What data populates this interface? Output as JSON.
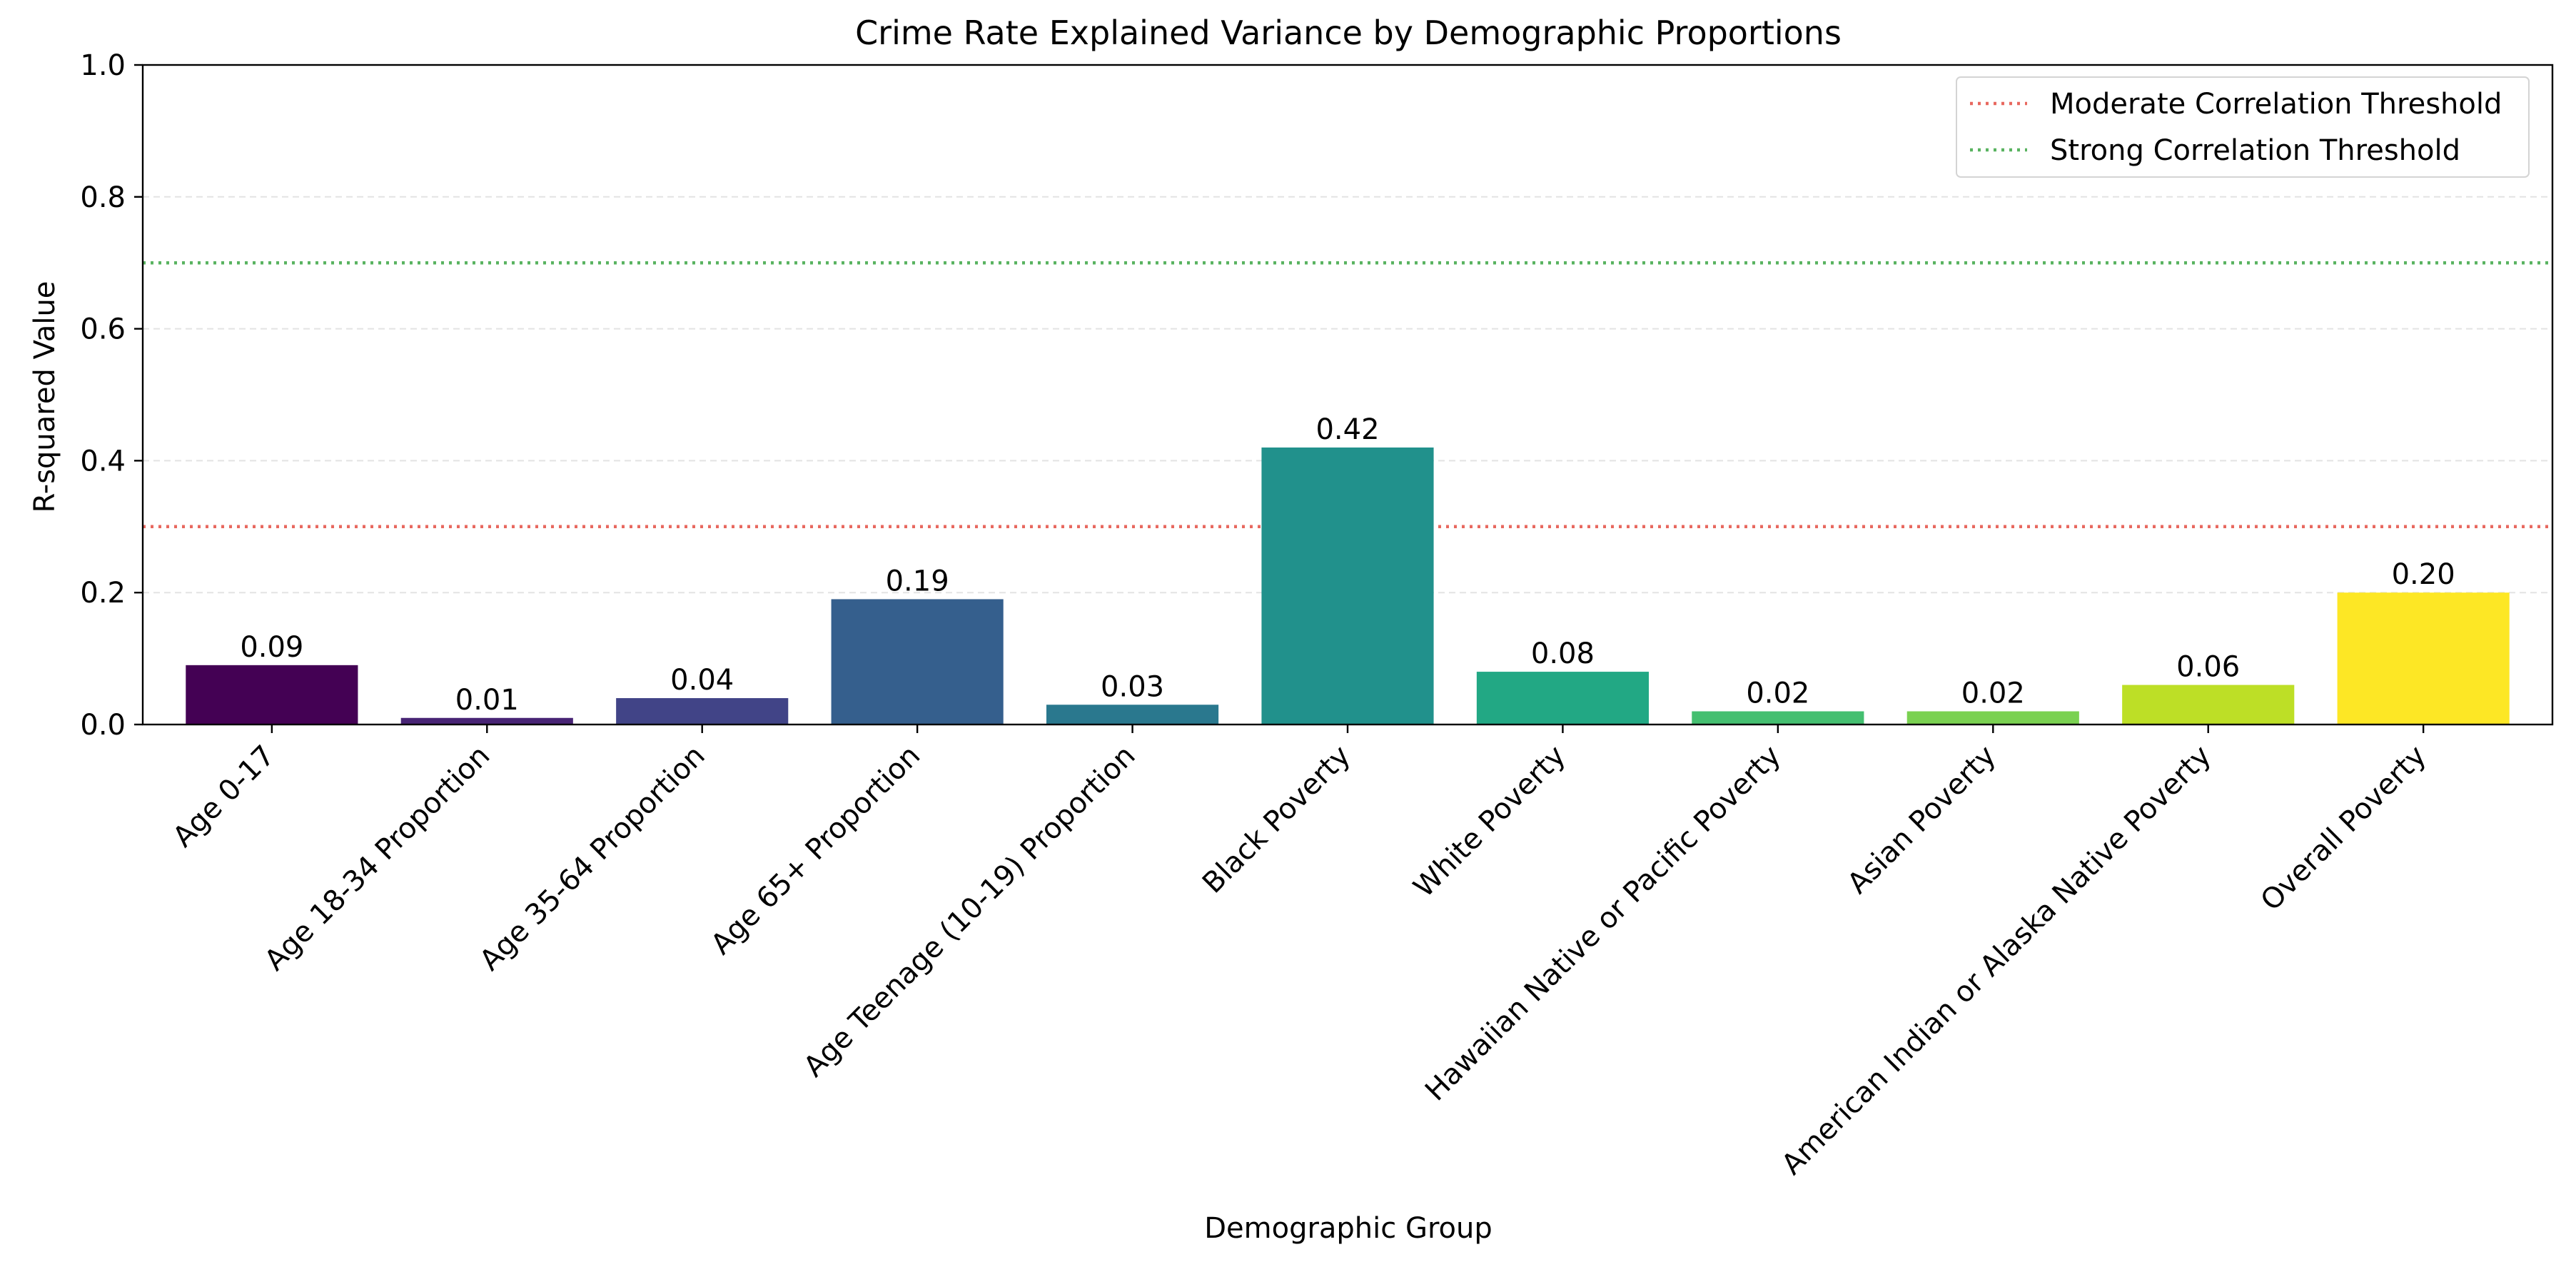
{
  "chart_data": {
    "type": "bar",
    "title": "Crime Rate Explained Variance by Demographic Proportions",
    "xlabel": "Demographic Group",
    "ylabel": "R-squared Value",
    "ylim": [
      0,
      1.0
    ],
    "yticks": [
      "0.0",
      "0.2",
      "0.4",
      "0.6",
      "0.8",
      "1.0"
    ],
    "categories": [
      "Age 0-17",
      "Age 18-34 Proportion",
      "Age 35-64 Proportion",
      "Age 65+ Proportion",
      "Age Teenage (10-19) Proportion",
      "Black Poverty",
      "White Poverty",
      "Hawaiian Native or Pacific Poverty",
      "Asian Poverty",
      "American Indian or Alaska Native Poverty",
      "Overall Poverty"
    ],
    "values": [
      0.09,
      0.01,
      0.04,
      0.19,
      0.03,
      0.42,
      0.08,
      0.02,
      0.02,
      0.06,
      0.2
    ],
    "value_labels": [
      "0.09",
      "0.01",
      "0.04",
      "0.19",
      "0.03",
      "0.42",
      "0.08",
      "0.02",
      "0.02",
      "0.06",
      "0.20"
    ],
    "colors": [
      "#440154",
      "#482475",
      "#414487",
      "#355f8d",
      "#2a788e",
      "#21918c",
      "#22a884",
      "#44bf70",
      "#7ad151",
      "#bddf26",
      "#fde725"
    ],
    "grid": "horizontal-dashed",
    "legend_position": "top-right",
    "reference_lines": [
      {
        "label": "Moderate Correlation Threshold",
        "value": 0.3,
        "color": "#e8685f"
      },
      {
        "label": "Strong Correlation Threshold",
        "value": 0.7,
        "color": "#59b360"
      }
    ]
  }
}
